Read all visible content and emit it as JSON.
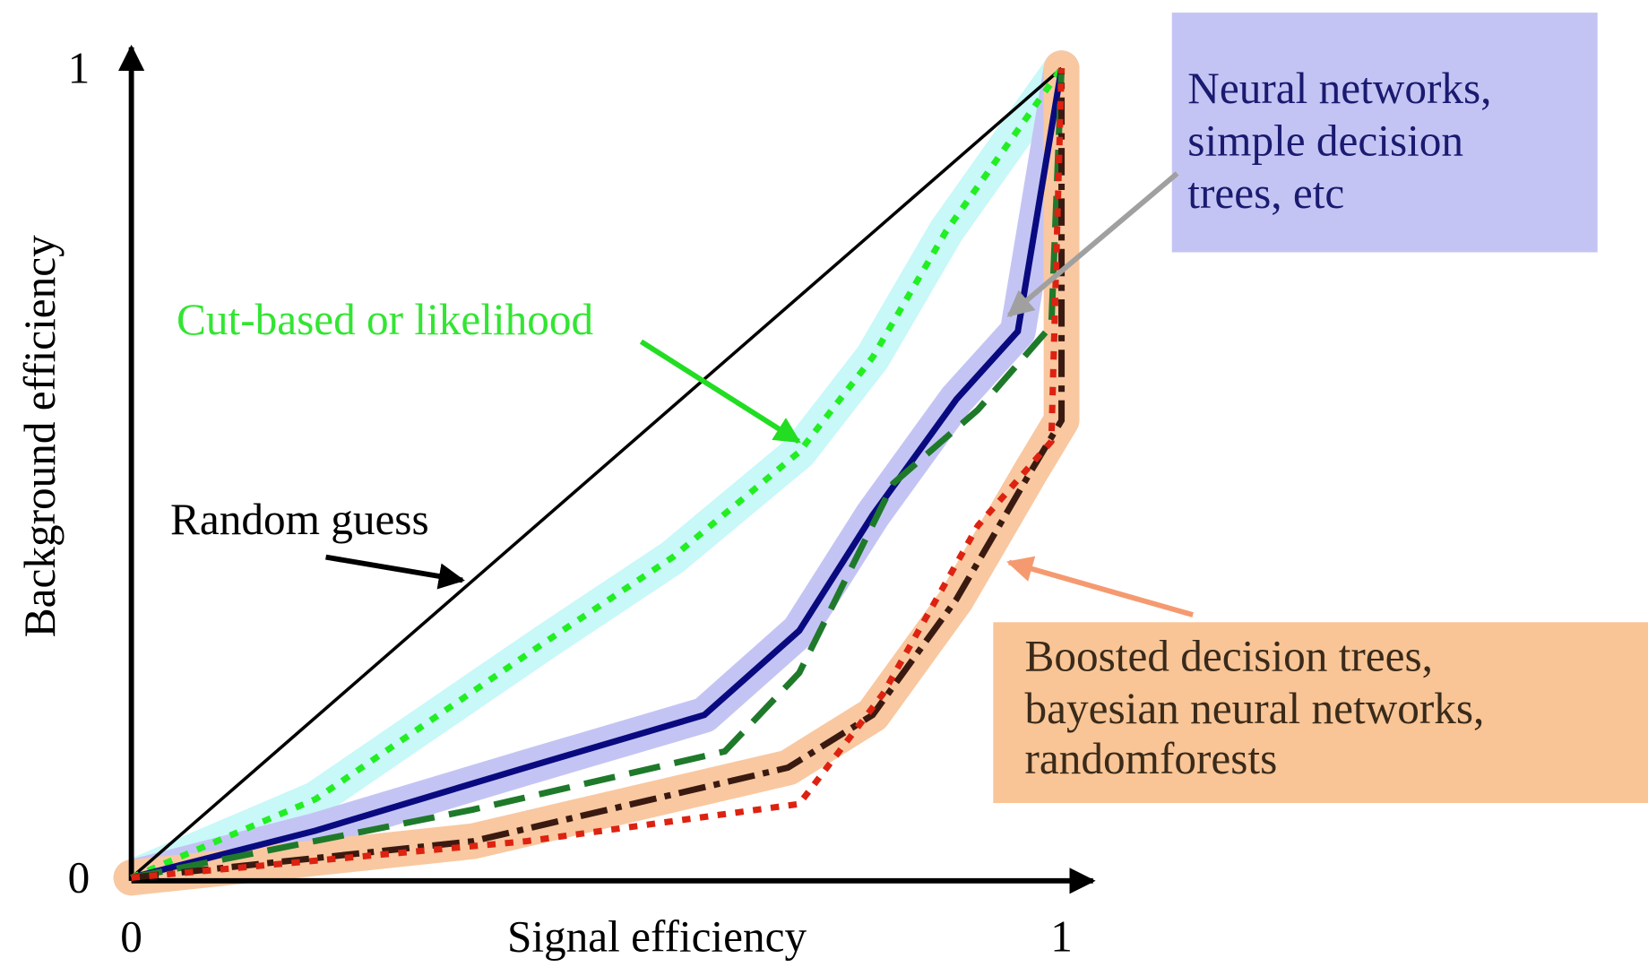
{
  "chart_data": {
    "type": "line",
    "xlabel": "Signal efficiency",
    "ylabel": "Background efficiency",
    "xlim": [
      0,
      1
    ],
    "ylim": [
      0,
      1
    ],
    "xticks": [
      0,
      1
    ],
    "yticks": [
      0,
      1
    ],
    "grid": false,
    "series": [
      {
        "color": "#000000",
        "dash": "solid",
        "band": null,
        "x": [
          0,
          1
        ],
        "values": [
          0,
          1
        ]
      },
      {
        "color": "#22ee22",
        "dash": "dotted",
        "band": "#c8f8f8",
        "x": [
          0,
          0.198,
          0.446,
          0.582,
          0.718,
          0.797,
          0.876,
          1
        ],
        "values": [
          0,
          0.097,
          0.292,
          0.396,
          0.526,
          0.643,
          0.799,
          1
        ]
      },
      {
        "color": "#0a0a80",
        "dash": "solid",
        "band": "#c4c4f4",
        "x": [
          0,
          0.198,
          0.424,
          0.616,
          0.718,
          0.797,
          0.887,
          0.953,
          1
        ],
        "values": [
          0,
          0.058,
          0.136,
          0.201,
          0.305,
          0.448,
          0.591,
          0.675,
          1
        ]
      },
      {
        "color": "#1e7a2a",
        "dash": "dashed",
        "band": null,
        "x": [
          0,
          0.367,
          0.638,
          0.718,
          0.819,
          0.91,
          0.989,
          1
        ],
        "values": [
          0,
          0.084,
          0.156,
          0.253,
          0.487,
          0.578,
          0.682,
          1
        ]
      },
      {
        "color": "#3a1a10",
        "dash": "dashdot",
        "band": "#f9c8a0",
        "x": [
          0,
          0.367,
          0.706,
          0.797,
          0.887,
          0.966,
          1,
          1
        ],
        "values": [
          0,
          0.045,
          0.136,
          0.201,
          0.344,
          0.5,
          0.565,
          1
        ]
      },
      {
        "color": "#dd2211",
        "dash": "dotted",
        "band": null,
        "x": [
          0,
          0.424,
          0.718,
          0.808,
          0.91,
          0.989,
          1
        ],
        "values": [
          0,
          0.045,
          0.091,
          0.227,
          0.435,
          0.539,
          1
        ]
      }
    ],
    "annotations": {
      "random": "Random guess",
      "cut": "Cut-based or likelihood",
      "neural": [
        "Neural networks,",
        "simple decision",
        "trees, etc"
      ],
      "boosted": [
        "Boosted decision trees,",
        "bayesian neural networks,",
        "randomforests"
      ]
    }
  }
}
